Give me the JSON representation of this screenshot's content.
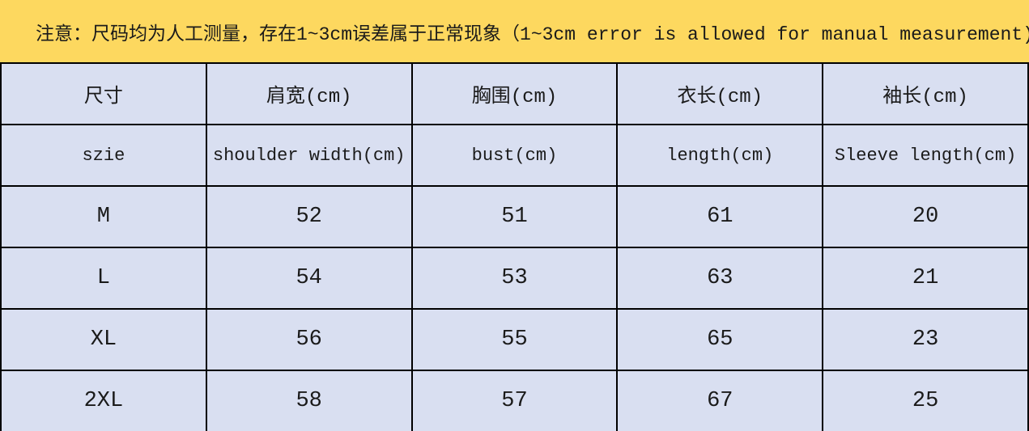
{
  "banner": {
    "background_color": "#FDD85F"
  },
  "colors": {
    "banner_background": "#FDD85F",
    "table_background": "#D9DFF1",
    "table_border": "#000000",
    "text": "#1A1A1A"
  },
  "chart_data": {
    "type": "table",
    "note": "注意：尺码均为人工测量，存在1~3cm误差属于正常现象（1~3cm error is allowed for manual measurement)",
    "units": "cm",
    "header_row_cn": [
      "尺寸",
      "肩宽(cm)",
      "胸围(cm)",
      "衣长(cm)",
      "袖长(cm)"
    ],
    "header_row_en": [
      "szie",
      "shoulder width(cm)",
      "bust(cm)",
      "length(cm)",
      "Sleeve length(cm)"
    ],
    "rows": [
      [
        "M",
        "52",
        "51",
        "61",
        "20"
      ],
      [
        "L",
        "54",
        "53",
        "63",
        "21"
      ],
      [
        "XL",
        "56",
        "55",
        "65",
        "23"
      ],
      [
        "2XL",
        "58",
        "57",
        "67",
        "25"
      ]
    ]
  }
}
